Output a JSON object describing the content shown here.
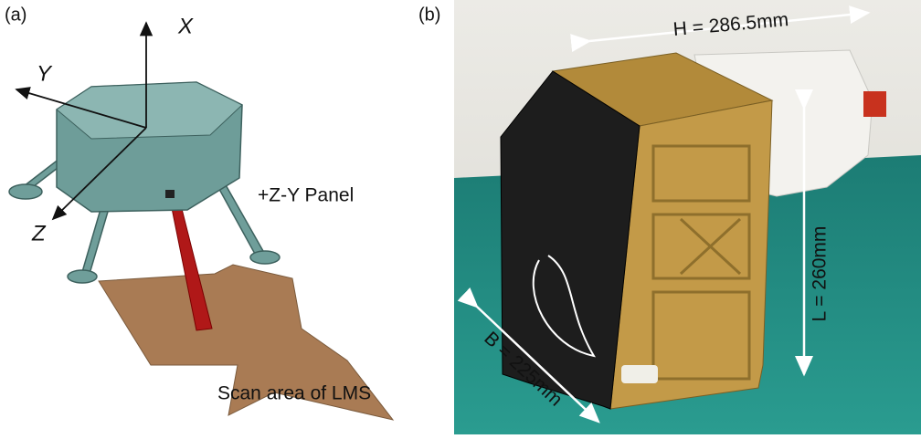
{
  "panels": {
    "a": {
      "label": "(a)",
      "axes": {
        "x": "X",
        "y": "Y",
        "z": "Z"
      },
      "panel_label": "+Z-Y Panel",
      "scan_label": "Scan area of LMS"
    },
    "b": {
      "label": "(b)",
      "height": "H = 286.5mm",
      "length": "L = 260mm",
      "breadth": "B = 225mm"
    }
  }
}
